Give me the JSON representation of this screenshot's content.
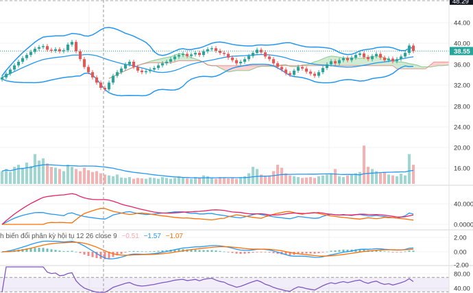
{
  "chart_data": {
    "type": "candlestick",
    "colors": {
      "up": "#26a69a",
      "down": "#ef5350",
      "bands": "#2196f3",
      "cloud_up": "#4caf50",
      "cloud_down": "#ef5350",
      "plus_di": "#2196f3",
      "minus_di": "#ff6d00",
      "adx": "#e91e63",
      "macd": "#2196f3",
      "signal": "#ff6d00",
      "rsi": "#7e57c2",
      "last_price_tag": "#26a69a"
    },
    "closes": [
      33.5,
      34.2,
      35,
      35.8,
      36.5,
      37.2,
      37.8,
      38.4,
      39,
      39.3,
      39.5,
      38.8,
      38.6,
      38.9,
      38.5,
      38.7,
      39.8,
      40.3,
      38.5,
      37,
      35.5,
      34.5,
      33.5,
      32.5,
      31.5,
      31.2,
      32.5,
      33.8,
      34.5,
      35.2,
      36,
      36.5,
      35.5,
      34.8,
      34.5,
      34.7,
      35,
      35.3,
      35.8,
      36.2,
      36.5,
      37,
      37.5,
      37.8,
      38,
      37.6,
      37.9,
      38.2,
      37.8,
      38.5,
      38.9,
      39.1,
      38.6,
      38.2,
      38,
      37.3,
      36.8,
      36.2,
      36.5,
      37,
      37.6,
      38.2,
      38.8,
      38.3,
      37.5,
      37,
      36.2,
      35.5,
      35,
      34.3,
      34,
      34.8,
      35.5,
      35.2,
      34.6,
      34.2,
      33.8,
      34.5,
      35.3,
      36,
      36.6,
      36.2,
      36.8,
      37.2,
      36.8,
      37.3,
      37.8,
      38.1,
      37.4,
      37,
      37.6,
      38,
      37.3,
      36.8,
      37.1,
      36.6,
      37,
      37.5,
      38.2,
      39.6,
      38.55
    ],
    "volumes": [
      30,
      35,
      28,
      40,
      45,
      38,
      50,
      42,
      70,
      55,
      60,
      48,
      40,
      38,
      35,
      30,
      45,
      40,
      35,
      30,
      38,
      32,
      28,
      30,
      25,
      22,
      20,
      18,
      22,
      15,
      14,
      16,
      12,
      14,
      13,
      12,
      15,
      14,
      12,
      16,
      14,
      12,
      14,
      18,
      15,
      13,
      12,
      16,
      14,
      20,
      18,
      14,
      12,
      16,
      15,
      13,
      14,
      12,
      16,
      18,
      25,
      40,
      35,
      22,
      18,
      20,
      30,
      45,
      38,
      25,
      20,
      18,
      16,
      14,
      15,
      16,
      14,
      18,
      20,
      22,
      25,
      35,
      18,
      16,
      20,
      22,
      25,
      28,
      90,
      40,
      35,
      30,
      25,
      28,
      22,
      20,
      18,
      24,
      20,
      70,
      45
    ],
    "price_axis": {
      "ticks": [
        "44.00",
        "40.00",
        "36.00",
        "32.00",
        "28.00",
        "24.00",
        "20.00",
        "16.00"
      ],
      "range": [
        14,
        48.29
      ],
      "top_label": "48.29",
      "last_price": "38.55"
    },
    "dmi_axis": {
      "ticks": [
        "40.0000",
        "0.0000"
      ]
    },
    "macd_axis": {
      "ticks": [
        "2.00",
        "0.00",
        "-2.00"
      ]
    },
    "rsi_axis": {
      "ticks": [
        "80.00",
        "40.00"
      ],
      "band": [
        30,
        70
      ]
    },
    "macd_legend": {
      "title": "h biến đổi phân kỳ hội tụ 12 26 close 9",
      "histogram": "−0.51",
      "macd": "−1.57",
      "signal": "−1.07"
    }
  }
}
